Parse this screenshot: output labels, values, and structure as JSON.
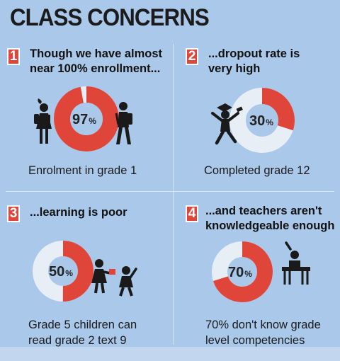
{
  "title": "CLASS CONCERNS",
  "colors": {
    "background": "#aac8ea",
    "accent": "#e0453a",
    "donut_track": "#e8eef6",
    "figure": "#1a1a1a"
  },
  "panels": [
    {
      "number": "1",
      "heading_line1": "Though we have almost",
      "heading_line2": "near 100% enrollment...",
      "value": "97",
      "percent_sign": "%",
      "fraction": 0.97,
      "caption_line1": "Enrolment in grade 1",
      "caption_line2": "",
      "icons": [
        "girl-student-icon",
        "boy-student-icon"
      ]
    },
    {
      "number": "2",
      "heading_line1": "...dropout rate is",
      "heading_line2": "very high",
      "value": "30",
      "percent_sign": "%",
      "fraction": 0.3,
      "caption_line1": "Completed grade 12",
      "caption_line2": "",
      "icons": [
        "graduate-icon"
      ]
    },
    {
      "number": "3",
      "heading_line1": "...learning is poor",
      "heading_line2": "",
      "value": "50",
      "percent_sign": "%",
      "fraction": 0.5,
      "caption_line1": "Grade 5 children can",
      "caption_line2": "read grade 2 text 9",
      "icons": [
        "children-reading-icon"
      ]
    },
    {
      "number": "4",
      "heading_line1": "...and teachers aren't",
      "heading_line2": "knowledgeable enough",
      "value": "70",
      "percent_sign": "%",
      "fraction": 0.7,
      "caption_line1": "70% don't know grade",
      "caption_line2": "level competencies",
      "icons": [
        "teacher-desk-icon"
      ]
    }
  ]
}
